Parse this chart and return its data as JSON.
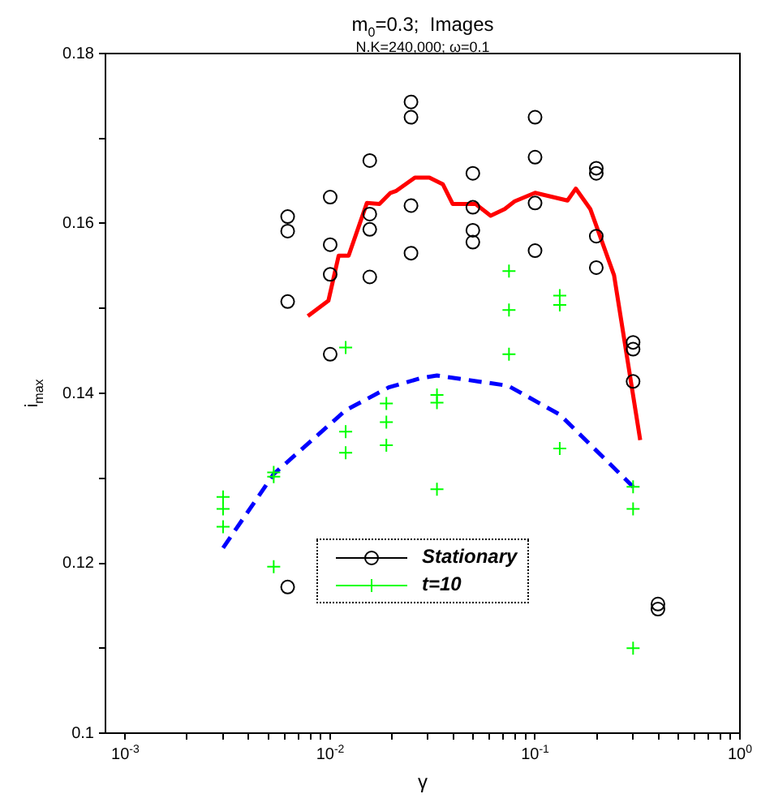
{
  "chart_data": {
    "type": "scatter",
    "title": "m$_{0}$=0.3;  Images",
    "subtitle": "N.K=240,000; ω=0.1",
    "xlabel": "γ",
    "ylabel": "i$_{max}$",
    "log": "x",
    "grid": false,
    "legend": "bottom",
    "xlim": [
      0.0008,
      1
    ],
    "ylim": [
      0.1,
      0.18
    ],
    "xticks": [
      {
        "value": 0.001,
        "label": "10$^{-3}$"
      },
      {
        "value": 0.002,
        "label": null
      },
      {
        "value": 0.003,
        "label": null
      },
      {
        "value": 0.004,
        "label": null
      },
      {
        "value": 0.005,
        "label": null
      },
      {
        "value": 0.006,
        "label": null
      },
      {
        "value": 0.007,
        "label": null
      },
      {
        "value": 0.008,
        "label": null
      },
      {
        "value": 0.009,
        "label": null
      },
      {
        "value": 0.01,
        "label": "10$^{-2}$"
      },
      {
        "value": 0.02,
        "label": null
      },
      {
        "value": 0.03,
        "label": null
      },
      {
        "value": 0.04,
        "label": null
      },
      {
        "value": 0.05,
        "label": null
      },
      {
        "value": 0.06,
        "label": null
      },
      {
        "value": 0.07,
        "label": null
      },
      {
        "value": 0.08,
        "label": null
      },
      {
        "value": 0.09,
        "label": null
      },
      {
        "value": 0.1,
        "label": "10$^{-1}$"
      },
      {
        "value": 0.2,
        "label": null
      },
      {
        "value": 0.3,
        "label": null
      },
      {
        "value": 0.4,
        "label": null
      },
      {
        "value": 0.5,
        "label": null
      },
      {
        "value": 0.6,
        "label": null
      },
      {
        "value": 0.7,
        "label": null
      },
      {
        "value": 0.8,
        "label": null
      },
      {
        "value": 0.9,
        "label": null
      },
      {
        "value": 1,
        "label": "10$^{0}$"
      }
    ],
    "yticks": [
      0.1,
      {
        "value": 0.11,
        "label": null
      },
      0.12,
      {
        "value": 0.13,
        "label": null
      },
      0.14,
      {
        "value": 0.15,
        "label": null
      },
      0.16,
      {
        "value": 0.17,
        "label": null
      },
      0.18
    ],
    "series": [
      {
        "name": "Stationary",
        "type": "scatter",
        "marker": "circle",
        "color": "#000000",
        "x": [
          0.0062,
          0.0062,
          0.0062,
          0.0062,
          0.01,
          0.01,
          0.01,
          0.01,
          0.0156,
          0.0156,
          0.0156,
          0.0156,
          0.0248,
          0.0248,
          0.0248,
          0.0248,
          0.0497,
          0.0497,
          0.0497,
          0.0497,
          0.1,
          0.1,
          0.1,
          0.1,
          0.199,
          0.199,
          0.199,
          0.199,
          0.301,
          0.301,
          0.301,
          0.398,
          0.398
        ],
        "values": [
          0.1608,
          0.1591,
          0.1508,
          0.1172,
          0.1631,
          0.1575,
          0.154,
          0.1446,
          0.1674,
          0.1611,
          0.1593,
          0.1537,
          0.1743,
          0.1725,
          0.1621,
          0.1565,
          0.1659,
          0.1619,
          0.1592,
          0.1578,
          0.1725,
          0.1678,
          0.1624,
          0.1568,
          0.1665,
          0.1659,
          0.1585,
          0.1548,
          0.146,
          0.1452,
          0.1414,
          0.1152,
          0.1146
        ]
      },
      {
        "name": "t=10",
        "type": "scatter",
        "marker": "cross",
        "color": "#00ff00",
        "x": [
          0.003,
          0.003,
          0.003,
          0.0053,
          0.0053,
          0.0053,
          0.0119,
          0.0119,
          0.0119,
          0.0188,
          0.0188,
          0.0188,
          0.0332,
          0.0332,
          0.0332,
          0.0746,
          0.0746,
          0.0746,
          0.132,
          0.132,
          0.132,
          0.301,
          0.301,
          0.301
        ],
        "values": [
          0.1278,
          0.1264,
          0.1243,
          0.1307,
          0.1302,
          0.1196,
          0.1454,
          0.1355,
          0.133,
          0.1388,
          0.1366,
          0.1339,
          0.1398,
          0.1389,
          0.1287,
          0.1544,
          0.1498,
          0.1446,
          0.1515,
          0.1504,
          0.1335,
          0.129,
          0.1264,
          0.11
        ]
      },
      {
        "type": "line",
        "marker": "none",
        "line_style": "solid",
        "color": "#ff0000",
        "x": [
          0.00778,
          0.0098,
          0.011,
          0.0123,
          0.0151,
          0.0174,
          0.0197,
          0.0209,
          0.0259,
          0.0305,
          0.0355,
          0.0396,
          0.0512,
          0.0607,
          0.0711,
          0.0795,
          0.1,
          0.144,
          0.158,
          0.186,
          0.243,
          0.326
        ],
        "values": [
          0.1491,
          0.1509,
          0.1562,
          0.1562,
          0.1624,
          0.1623,
          0.1636,
          0.1638,
          0.1654,
          0.1654,
          0.1646,
          0.1623,
          0.1623,
          0.1609,
          0.1617,
          0.1626,
          0.1636,
          0.1627,
          0.1641,
          0.1617,
          0.1539,
          0.1345
        ]
      },
      {
        "type": "line",
        "marker": "none",
        "line_style": "dashed",
        "color": "#0000ff",
        "x": [
          0.003,
          0.0053,
          0.0119,
          0.0193,
          0.0278,
          0.0332,
          0.0737,
          0.132,
          0.301
        ],
        "values": [
          0.1218,
          0.1305,
          0.138,
          0.1407,
          0.1418,
          0.1421,
          0.1409,
          0.1375,
          0.129
        ]
      }
    ]
  }
}
